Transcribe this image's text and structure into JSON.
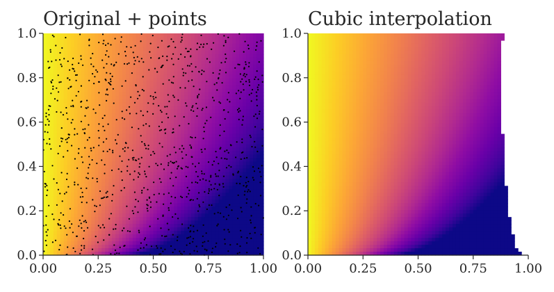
{
  "chart_data": [
    {
      "type": "heatmap",
      "title": "Original + points",
      "xlabel": "",
      "ylabel": "",
      "xlim": [
        0.0,
        1.0
      ],
      "ylim": [
        0.0,
        1.0
      ],
      "x_ticks": [
        "0.00",
        "0.25",
        "0.50",
        "0.75",
        "1.00"
      ],
      "y_ticks": [
        "0.0",
        "0.2",
        "0.4",
        "0.6",
        "0.8",
        "1.0"
      ],
      "colormap": "plasma",
      "grid": false,
      "overlay": "scatter of sample points",
      "point_color": "#000000"
    },
    {
      "type": "heatmap",
      "title": "Cubic interpolation",
      "xlabel": "",
      "ylabel": "",
      "xlim": [
        0.0,
        1.0
      ],
      "ylim": [
        0.0,
        1.0
      ],
      "x_ticks": [
        "0.00",
        "0.25",
        "0.50",
        "0.75",
        "1.00"
      ],
      "y_ticks": [
        "0.0",
        "0.2",
        "0.4",
        "0.6",
        "0.8",
        "1.0"
      ],
      "colormap": "plasma",
      "grid": false
    }
  ]
}
